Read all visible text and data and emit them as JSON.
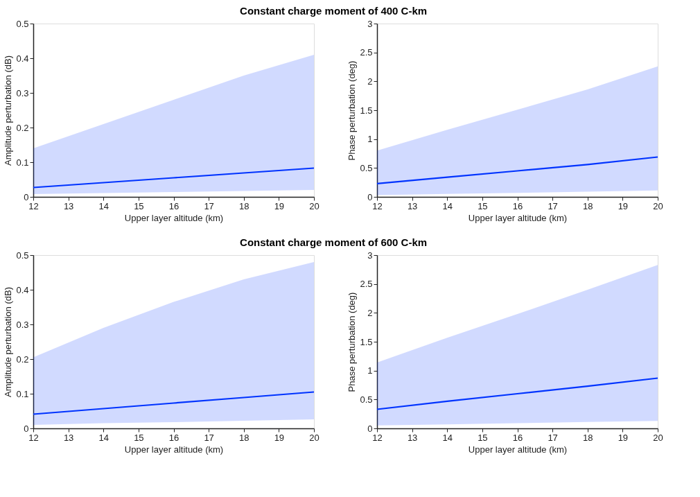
{
  "chart_data": [
    {
      "type": "line",
      "title": "Constant charge moment of 400 C-km",
      "xlabel": "Upper layer altitude (km)",
      "ylabel": "Amplitude perturbation (dB)",
      "x": [
        12,
        14,
        16,
        18,
        20
      ],
      "xlim": [
        12,
        20
      ],
      "xticks": [
        12,
        13,
        14,
        15,
        16,
        17,
        18,
        19,
        20
      ],
      "ylim": [
        0,
        0.5
      ],
      "yticks": [
        0,
        0.1,
        0.2,
        0.3,
        0.4,
        0.5
      ],
      "grid": false,
      "series": [
        {
          "color": "#0033ff",
          "values": [
            0.027,
            0.041,
            0.055,
            0.069,
            0.083
          ],
          "lower": [
            0.008,
            0.011,
            0.014,
            0.017,
            0.02
          ],
          "upper": [
            0.14,
            0.21,
            0.28,
            0.35,
            0.41
          ]
        }
      ]
    },
    {
      "type": "line",
      "xlabel": "Upper layer altitude (km)",
      "ylabel": "Phase perturbation (deg)",
      "x": [
        12,
        14,
        16,
        18,
        20
      ],
      "xlim": [
        12,
        20
      ],
      "xticks": [
        12,
        13,
        14,
        15,
        16,
        17,
        18,
        19,
        20
      ],
      "ylim": [
        0,
        3
      ],
      "yticks": [
        0,
        0.5,
        1,
        1.5,
        2,
        2.5,
        3
      ],
      "grid": false,
      "series": [
        {
          "color": "#0033ff",
          "values": [
            0.23,
            0.34,
            0.45,
            0.56,
            0.69
          ],
          "lower": [
            0.03,
            0.05,
            0.07,
            0.09,
            0.11
          ],
          "upper": [
            0.8,
            1.16,
            1.51,
            1.86,
            2.26
          ]
        }
      ]
    },
    {
      "type": "line",
      "title": "Constant charge moment of 600 C-km",
      "xlabel": "Upper layer altitude (km)",
      "ylabel": "Amplitude perturbation (dB)",
      "x": [
        12,
        14,
        16,
        18,
        20
      ],
      "xlim": [
        12,
        20
      ],
      "xticks": [
        12,
        13,
        14,
        15,
        16,
        17,
        18,
        19,
        20
      ],
      "ylim": [
        0,
        0.5
      ],
      "yticks": [
        0,
        0.1,
        0.2,
        0.3,
        0.4,
        0.5
      ],
      "grid": false,
      "series": [
        {
          "color": "#0033ff",
          "values": [
            0.041,
            0.057,
            0.073,
            0.089,
            0.105
          ],
          "lower": [
            0.01,
            0.015,
            0.018,
            0.022,
            0.026
          ],
          "upper": [
            0.205,
            0.29,
            0.365,
            0.43,
            0.48
          ]
        }
      ]
    },
    {
      "type": "line",
      "xlabel": "Upper layer altitude (km)",
      "ylabel": "Phase perturbation (deg)",
      "x": [
        12,
        14,
        16,
        18,
        20
      ],
      "xlim": [
        12,
        20
      ],
      "xticks": [
        12,
        13,
        14,
        15,
        16,
        17,
        18,
        19,
        20
      ],
      "ylim": [
        0,
        3
      ],
      "yticks": [
        0,
        0.5,
        1,
        1.5,
        2,
        2.5,
        3
      ],
      "grid": false,
      "series": [
        {
          "color": "#0033ff",
          "values": [
            0.33,
            0.47,
            0.6,
            0.73,
            0.87
          ],
          "lower": [
            0.05,
            0.07,
            0.09,
            0.11,
            0.13
          ],
          "upper": [
            1.14,
            1.57,
            1.98,
            2.4,
            2.83
          ]
        }
      ]
    }
  ]
}
